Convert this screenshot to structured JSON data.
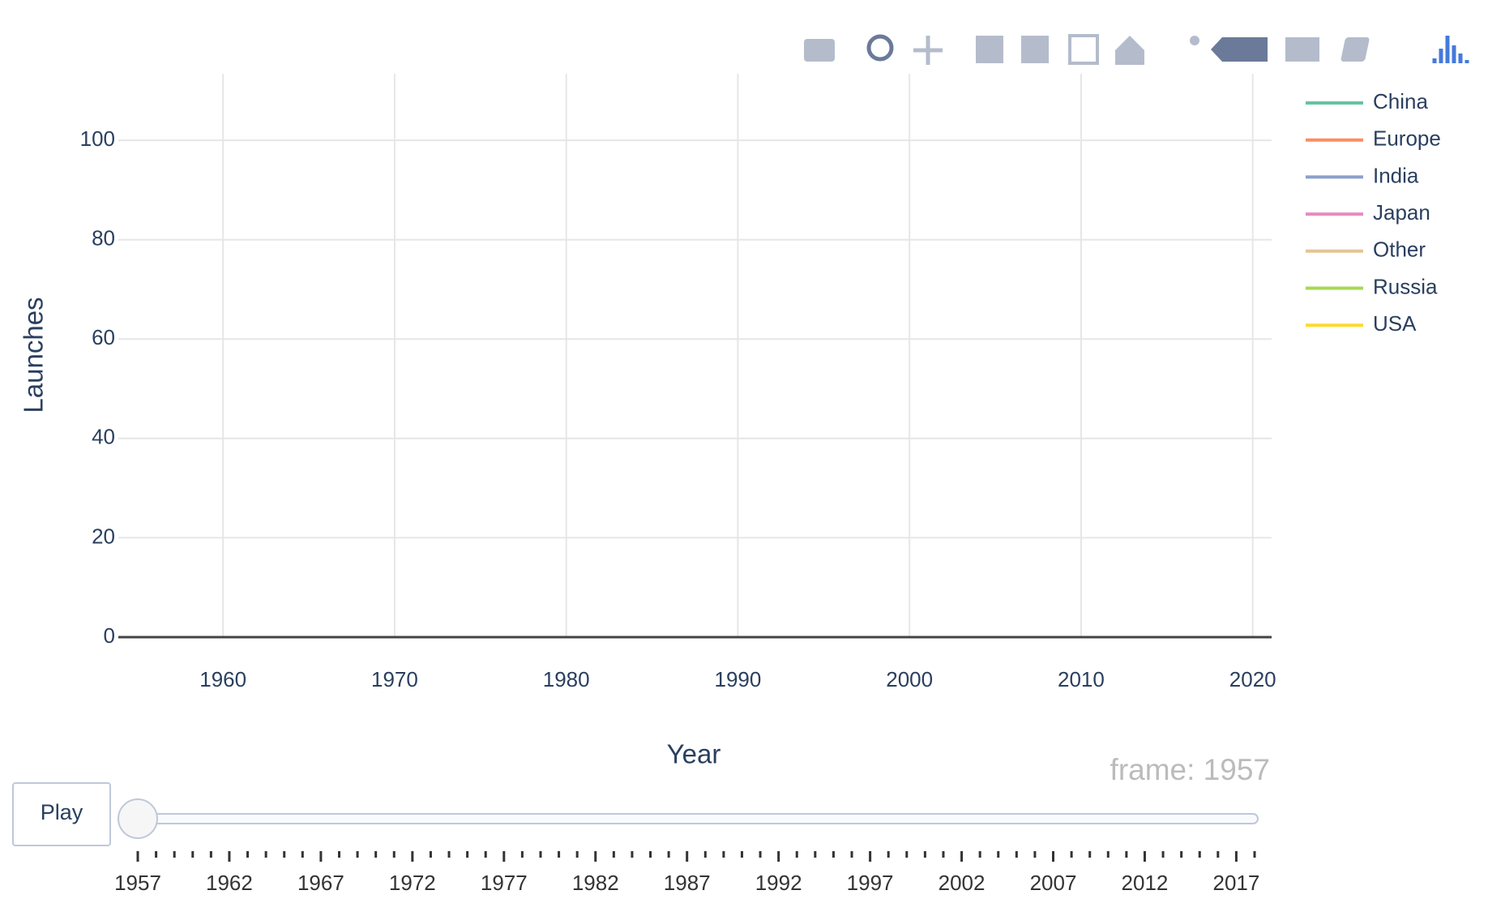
{
  "chart_data": {
    "type": "line",
    "x_label": "Year",
    "y_label": "Launches",
    "x": [],
    "series": [
      {
        "name": "China",
        "color": "#66c2a5",
        "values": []
      },
      {
        "name": "Europe",
        "color": "#fc8d62",
        "values": []
      },
      {
        "name": "India",
        "color": "#8da0cb",
        "values": []
      },
      {
        "name": "Japan",
        "color": "#e78ac3",
        "values": []
      },
      {
        "name": "Other",
        "color": "#e5c494",
        "values": []
      },
      {
        "name": "Russia",
        "color": "#a6d854",
        "values": []
      },
      {
        "name": "USA",
        "color": "#ffd92f",
        "values": []
      }
    ],
    "xlim": [
      1953.9,
      2021.1
    ],
    "xticks": [
      1960,
      1970,
      1980,
      1990,
      2000,
      2010,
      2020
    ],
    "ylim": [
      0,
      113.4
    ],
    "yticks": [
      0,
      20,
      40,
      60,
      80,
      100
    ],
    "grid": true,
    "legend": "right",
    "play_button": "Play",
    "slider": {
      "current_label": "frame: 1957",
      "active": 0,
      "steps": [
        "1957",
        "1958",
        "1959",
        "1960",
        "1961",
        "1962",
        "1963",
        "1964",
        "1965",
        "1966",
        "1967",
        "1968",
        "1969",
        "1970",
        "1971",
        "1972",
        "1973",
        "1974",
        "1975",
        "1976",
        "1977",
        "1978",
        "1979",
        "1980",
        "1981",
        "1982",
        "1983",
        "1984",
        "1985",
        "1986",
        "1987",
        "1988",
        "1989",
        "1990",
        "1991",
        "1992",
        "1993",
        "1994",
        "1995",
        "1996",
        "1997",
        "1998",
        "1999",
        "2000",
        "2001",
        "2002",
        "2003",
        "2004",
        "2005",
        "2006",
        "2007",
        "2008",
        "2009",
        "2010",
        "2011",
        "2012",
        "2013",
        "2014",
        "2015",
        "2016",
        "2017",
        "2018"
      ]
    }
  }
}
